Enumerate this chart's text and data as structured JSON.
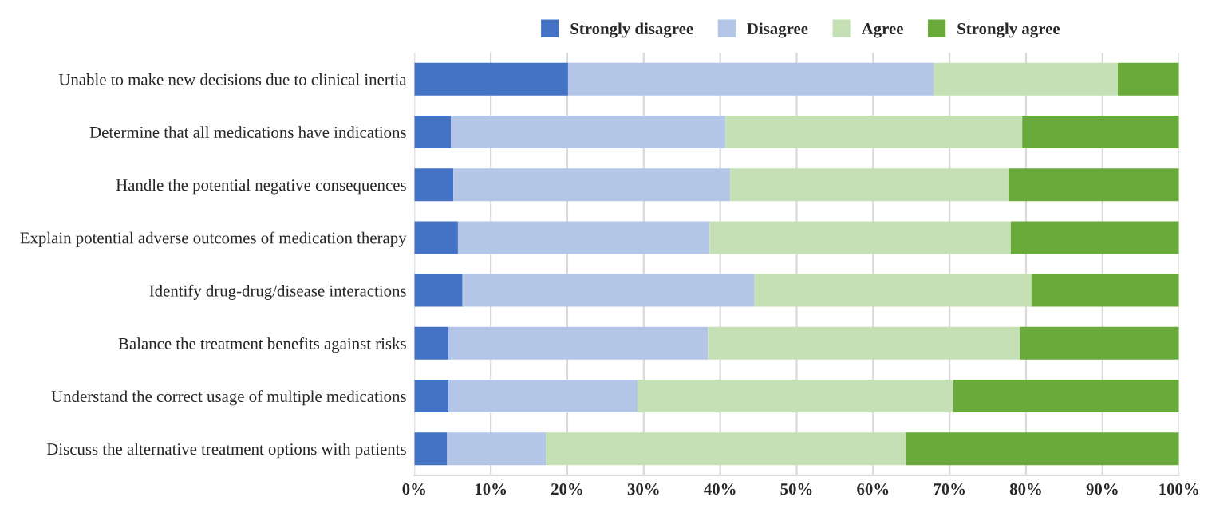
{
  "chart_data": {
    "type": "bar",
    "orientation": "horizontal",
    "stacked": true,
    "categories": [
      "Unable to make new decisions due to clinical inertia",
      "Determine that all medications have indications",
      "Handle the potential negative consequences",
      "Explain potential adverse outcomes of medication therapy",
      "Identify drug-drug/disease interactions",
      "Balance the treatment benefits against risks",
      "Understand the correct usage of multiple medications",
      "Discuss the alternative treatment options with patients"
    ],
    "series": [
      {
        "name": "Strongly disagree",
        "color": "#4472c4",
        "values": [
          20.1,
          4.8,
          5.1,
          5.7,
          6.3,
          4.5,
          4.5,
          4.3
        ]
      },
      {
        "name": "Disagree",
        "color": "#b4c6e7",
        "values": [
          47.8,
          35.9,
          36.2,
          32.9,
          38.2,
          33.9,
          24.7,
          12.9
        ]
      },
      {
        "name": "Agree",
        "color": "#c5e0b4",
        "values": [
          24.1,
          38.8,
          36.4,
          39.4,
          36.2,
          40.8,
          41.3,
          47.1
        ]
      },
      {
        "name": "Strongly agree",
        "color": "#6aaa3a",
        "values": [
          8.0,
          20.5,
          22.3,
          22.0,
          19.3,
          20.8,
          29.5,
          35.7
        ]
      }
    ],
    "xlim": [
      0,
      100
    ],
    "xticks": [
      {
        "value": 0,
        "label": "0%"
      },
      {
        "value": 10,
        "label": "10%"
      },
      {
        "value": 20,
        "label": "20%"
      },
      {
        "value": 30,
        "label": "30%"
      },
      {
        "value": 40,
        "label": "40%"
      },
      {
        "value": 50,
        "label": "50%"
      },
      {
        "value": 60,
        "label": "60%"
      },
      {
        "value": 70,
        "label": "70%"
      },
      {
        "value": 80,
        "label": "80%"
      },
      {
        "value": 90,
        "label": "90%"
      },
      {
        "value": 100,
        "label": "100%"
      }
    ],
    "grid": "x",
    "legend": "top",
    "marker": "square"
  }
}
